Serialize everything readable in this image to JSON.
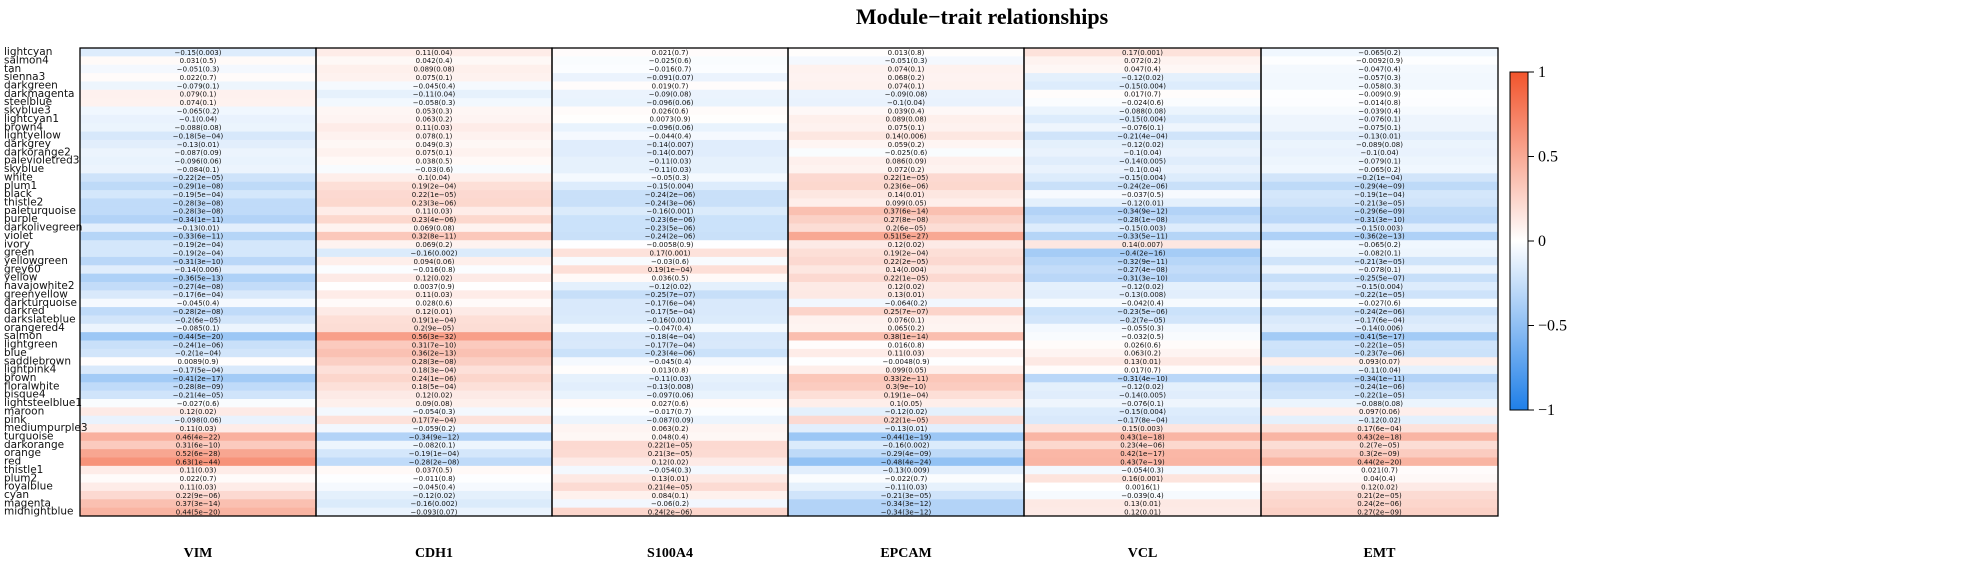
{
  "chart_data": {
    "type": "heatmap",
    "title": "Module−trait relationships",
    "columns": [
      "VIM",
      "CDH1",
      "S100A4",
      "EPCAM",
      "VCL",
      "EMT"
    ],
    "rows": [
      "lightcyan",
      "salmon4",
      "tan",
      "sienna3",
      "darkgreen",
      "darkmagenta",
      "steelblue",
      "skyblue3",
      "lightcyan1",
      "brown4",
      "lightyellow",
      "darkgrey",
      "darkorange2",
      "palevioletred3",
      "skyblue",
      "white",
      "plum1",
      "black",
      "thistle2",
      "paleturquoise",
      "purple",
      "darkolivegreen",
      "violet",
      "ivory",
      "green",
      "yellowgreen",
      "grey60",
      "yellow",
      "navajowhite2",
      "greenyellow",
      "darkturquoise",
      "darkred",
      "darkslateblue",
      "orangered4",
      "salmon",
      "lightgreen",
      "blue",
      "saddlebrown",
      "lightpink4",
      "brown",
      "floralwhite",
      "bisque4",
      "lightsteelblue1",
      "maroon",
      "pink",
      "mediumpurple3",
      "turquoise",
      "darkorange",
      "orange",
      "red",
      "thistle1",
      "plum2",
      "royalblue",
      "cyan",
      "magenta",
      "midnightblue"
    ],
    "values": [
      [
        -0.15,
        0.11,
        0.021,
        0.013,
        0.17,
        -0.065
      ],
      [
        0.031,
        0.042,
        -0.025,
        -0.051,
        0.072,
        -0.0092
      ],
      [
        -0.051,
        0.089,
        -0.016,
        0.074,
        0.047,
        -0.047
      ],
      [
        0.022,
        0.075,
        -0.091,
        0.068,
        -0.12,
        -0.057
      ],
      [
        -0.079,
        -0.045,
        0.019,
        0.074,
        -0.15,
        -0.058
      ],
      [
        0.079,
        -0.11,
        -0.09,
        -0.09,
        0.017,
        -0.009
      ],
      [
        0.074,
        -0.058,
        -0.096,
        -0.1,
        -0.024,
        -0.014
      ],
      [
        -0.065,
        0.053,
        0.026,
        0.039,
        -0.088,
        -0.039
      ],
      [
        -0.1,
        0.063,
        0.0073,
        0.089,
        -0.15,
        -0.076
      ],
      [
        -0.088,
        0.11,
        -0.096,
        0.075,
        -0.076,
        -0.075
      ],
      [
        -0.18,
        0.078,
        -0.044,
        0.14,
        -0.21,
        -0.13
      ],
      [
        -0.13,
        0.049,
        -0.14,
        0.059,
        -0.12,
        -0.089
      ],
      [
        -0.087,
        0.075,
        -0.14,
        -0.025,
        -0.1,
        -0.1
      ],
      [
        -0.096,
        0.038,
        -0.11,
        0.086,
        -0.14,
        -0.079
      ],
      [
        -0.084,
        -0.03,
        -0.11,
        0.072,
        -0.1,
        -0.065
      ],
      [
        -0.22,
        0.1,
        -0.05,
        0.22,
        -0.15,
        -0.2
      ],
      [
        -0.29,
        0.19,
        -0.15,
        0.23,
        -0.24,
        -0.29
      ],
      [
        -0.19,
        0.22,
        -0.24,
        0.14,
        -0.037,
        -0.19
      ],
      [
        -0.28,
        0.23,
        -0.24,
        0.099,
        -0.12,
        -0.21
      ],
      [
        -0.28,
        0.11,
        -0.16,
        0.37,
        -0.34,
        -0.29
      ],
      [
        -0.34,
        0.23,
        -0.23,
        0.27,
        -0.28,
        -0.31
      ],
      [
        -0.13,
        0.069,
        -0.23,
        0.2,
        -0.15,
        -0.15
      ],
      [
        -0.33,
        0.32,
        -0.24,
        0.51,
        -0.33,
        -0.36
      ],
      [
        -0.19,
        0.069,
        -0.0058,
        0.12,
        0.14,
        -0.065
      ],
      [
        -0.19,
        -0.16,
        0.17,
        0.19,
        -0.4,
        -0.082
      ],
      [
        -0.31,
        0.094,
        -0.03,
        0.22,
        -0.32,
        -0.21
      ],
      [
        -0.14,
        -0.016,
        0.19,
        0.14,
        -0.27,
        -0.078
      ],
      [
        -0.36,
        0.12,
        0.036,
        0.22,
        -0.31,
        -0.25
      ],
      [
        -0.27,
        0.0037,
        -0.12,
        0.12,
        -0.12,
        -0.15
      ],
      [
        -0.17,
        0.11,
        -0.25,
        0.13,
        -0.13,
        -0.22
      ],
      [
        -0.045,
        0.028,
        -0.17,
        -0.064,
        -0.042,
        -0.027
      ],
      [
        -0.28,
        0.12,
        -0.17,
        0.25,
        -0.23,
        -0.24
      ],
      [
        -0.2,
        0.19,
        -0.16,
        0.076,
        -0.2,
        -0.17
      ],
      [
        -0.085,
        0.2,
        -0.047,
        0.065,
        -0.055,
        -0.14
      ],
      [
        -0.44,
        0.56,
        -0.18,
        0.38,
        -0.032,
        -0.41
      ],
      [
        -0.24,
        0.31,
        -0.17,
        0.016,
        0.026,
        -0.22
      ],
      [
        -0.2,
        0.36,
        -0.23,
        0.11,
        0.063,
        -0.23
      ],
      [
        0.0089,
        0.28,
        -0.045,
        -0.0048,
        0.13,
        0.093
      ],
      [
        -0.17,
        0.18,
        0.013,
        0.099,
        0.017,
        -0.11
      ],
      [
        -0.41,
        0.24,
        -0.11,
        0.33,
        -0.31,
        -0.34
      ],
      [
        -0.28,
        0.18,
        -0.13,
        0.3,
        -0.12,
        -0.24
      ],
      [
        -0.21,
        0.12,
        -0.097,
        0.19,
        -0.14,
        -0.22
      ],
      [
        -0.027,
        0.09,
        0.027,
        0.1,
        -0.076,
        -0.088
      ],
      [
        0.12,
        -0.054,
        -0.017,
        -0.12,
        -0.15,
        0.097
      ],
      [
        -0.098,
        0.17,
        -0.087,
        0.22,
        -0.17,
        -0.12
      ],
      [
        0.11,
        -0.059,
        0.063,
        -0.13,
        0.15,
        0.17
      ],
      [
        0.46,
        -0.34,
        0.048,
        -0.44,
        0.43,
        0.43
      ],
      [
        0.31,
        -0.082,
        0.22,
        -0.16,
        0.23,
        0.2
      ],
      [
        0.52,
        -0.19,
        0.21,
        -0.29,
        0.42,
        0.3
      ],
      [
        0.63,
        -0.28,
        0.12,
        -0.48,
        0.43,
        0.44
      ],
      [
        0.11,
        0.037,
        -0.054,
        -0.13,
        -0.054,
        0.021
      ],
      [
        0.022,
        -0.011,
        0.13,
        -0.022,
        0.16,
        0.04
      ],
      [
        0.11,
        -0.045,
        0.21,
        -0.11,
        0.0016,
        0.12
      ],
      [
        0.22,
        -0.12,
        0.084,
        -0.21,
        -0.039,
        0.21
      ],
      [
        0.37,
        -0.16,
        -0.06,
        -0.34,
        0.13,
        0.24
      ],
      [
        0.44,
        -0.093,
        0.24,
        -0.34,
        0.12,
        0.27
      ]
    ],
    "labels": [
      [
        "−0.15(0.003)",
        "0.11(0.04)",
        "0.021(0.7)",
        "0.013(0.8)",
        "0.17(0.001)",
        "−0.065(0.2)"
      ],
      [
        "0.031(0.5)",
        "0.042(0.4)",
        "−0.025(0.6)",
        "−0.051(0.3)",
        "0.072(0.2)",
        "−0.0092(0.9)"
      ],
      [
        "−0.051(0.3)",
        "0.089(0.08)",
        "−0.016(0.7)",
        "0.074(0.1)",
        "0.047(0.4)",
        "−0.047(0.4)"
      ],
      [
        "0.022(0.7)",
        "0.075(0.1)",
        "−0.091(0.07)",
        "0.068(0.2)",
        "−0.12(0.02)",
        "−0.057(0.3)"
      ],
      [
        "−0.079(0.1)",
        "−0.045(0.4)",
        "0.019(0.7)",
        "0.074(0.1)",
        "−0.15(0.004)",
        "−0.058(0.3)"
      ],
      [
        "0.079(0.1)",
        "−0.11(0.04)",
        "−0.09(0.08)",
        "−0.09(0.08)",
        "0.017(0.7)",
        "−0.009(0.9)"
      ],
      [
        "0.074(0.1)",
        "−0.058(0.3)",
        "−0.096(0.06)",
        "−0.1(0.04)",
        "−0.024(0.6)",
        "−0.014(0.8)"
      ],
      [
        "−0.065(0.2)",
        "0.053(0.3)",
        "0.026(0.6)",
        "0.039(0.4)",
        "−0.088(0.08)",
        "−0.039(0.4)"
      ],
      [
        "−0.1(0.04)",
        "0.063(0.2)",
        "0.0073(0.9)",
        "0.089(0.08)",
        "−0.15(0.004)",
        "−0.076(0.1)"
      ],
      [
        "−0.088(0.08)",
        "0.11(0.03)",
        "−0.096(0.06)",
        "0.075(0.1)",
        "−0.076(0.1)",
        "−0.075(0.1)"
      ],
      [
        "−0.18(5e−04)",
        "0.078(0.1)",
        "−0.044(0.4)",
        "0.14(0.006)",
        "−0.21(4e−04)",
        "−0.13(0.01)"
      ],
      [
        "−0.13(0.01)",
        "0.049(0.3)",
        "−0.14(0.007)",
        "0.059(0.2)",
        "−0.12(0.02)",
        "−0.089(0.08)"
      ],
      [
        "−0.087(0.09)",
        "0.075(0.1)",
        "−0.14(0.007)",
        "−0.025(0.6)",
        "−0.1(0.04)",
        "−0.1(0.04)"
      ],
      [
        "−0.096(0.06)",
        "0.038(0.5)",
        "−0.11(0.03)",
        "0.086(0.09)",
        "−0.14(0.005)",
        "−0.079(0.1)"
      ],
      [
        "−0.084(0.1)",
        "−0.03(0.6)",
        "−0.11(0.03)",
        "0.072(0.2)",
        "−0.1(0.04)",
        "−0.065(0.2)"
      ],
      [
        "−0.22(2e−05)",
        "0.1(0.04)",
        "−0.05(0.3)",
        "0.22(1e−05)",
        "−0.15(0.004)",
        "−0.2(1e−04)"
      ],
      [
        "−0.29(1e−08)",
        "0.19(2e−04)",
        "−0.15(0.004)",
        "0.23(6e−06)",
        "−0.24(2e−06)",
        "−0.29(4e−09)"
      ],
      [
        "−0.19(5e−04)",
        "0.22(1e−05)",
        "−0.24(2e−06)",
        "0.14(0.01)",
        "−0.037(0.5)",
        "−0.19(1e−04)"
      ],
      [
        "−0.28(3e−08)",
        "0.23(3e−06)",
        "−0.24(3e−06)",
        "0.099(0.05)",
        "−0.12(0.01)",
        "−0.21(3e−05)"
      ],
      [
        "−0.28(3e−08)",
        "0.11(0.03)",
        "−0.16(0.001)",
        "0.37(6e−14)",
        "−0.34(9e−12)",
        "−0.29(6e−09)"
      ],
      [
        "−0.34(1e−11)",
        "0.23(4e−06)",
        "−0.23(6e−06)",
        "0.27(8e−08)",
        "−0.28(1e−08)",
        "−0.31(3e−10)"
      ],
      [
        "−0.13(0.01)",
        "0.069(0.08)",
        "−0.23(5e−06)",
        "0.2(6e−05)",
        "−0.15(0.003)",
        "−0.15(0.003)"
      ],
      [
        "−0.33(6e−11)",
        "0.32(8e−11)",
        "−0.24(2e−06)",
        "0.51(5e−27)",
        "−0.33(5e−11)",
        "−0.36(2e−13)"
      ],
      [
        "−0.19(2e−04)",
        "0.069(0.2)",
        "−0.0058(0.9)",
        "0.12(0.02)",
        "0.14(0.007)",
        "−0.065(0.2)"
      ],
      [
        "−0.19(2e−04)",
        "−0.16(0.002)",
        "0.17(0.001)",
        "0.19(2e−04)",
        "−0.4(2e−16)",
        "−0.082(0.1)"
      ],
      [
        "−0.31(3e−10)",
        "0.094(0.06)",
        "−0.03(0.6)",
        "0.22(2e−05)",
        "−0.32(9e−11)",
        "−0.21(3e−05)"
      ],
      [
        "−0.14(0.006)",
        "−0.016(0.8)",
        "0.19(1e−04)",
        "0.14(0.004)",
        "−0.27(4e−08)",
        "−0.078(0.1)"
      ],
      [
        "−0.36(5e−13)",
        "0.12(0.02)",
        "0.036(0.5)",
        "0.22(1e−05)",
        "−0.31(3e−10)",
        "−0.25(5e−07)"
      ],
      [
        "−0.27(4e−08)",
        "0.0037(0.9)",
        "−0.12(0.02)",
        "0.12(0.02)",
        "−0.12(0.02)",
        "−0.15(0.004)"
      ],
      [
        "−0.17(6e−04)",
        "0.11(0.03)",
        "−0.25(7e−07)",
        "0.13(0.01)",
        "−0.13(0.008)",
        "−0.22(1e−05)"
      ],
      [
        "−0.045(0.4)",
        "0.028(0.6)",
        "−0.17(6e−04)",
        "−0.064(0.2)",
        "−0.042(0.4)",
        "−0.027(0.6)"
      ],
      [
        "−0.28(2e−08)",
        "0.12(0.01)",
        "−0.17(5e−04)",
        "0.25(7e−07)",
        "−0.23(5e−06)",
        "−0.24(2e−06)"
      ],
      [
        "−0.2(6e−05)",
        "0.19(1e−04)",
        "−0.16(0.001)",
        "0.076(0.1)",
        "−0.2(7e−05)",
        "−0.17(6e−04)"
      ],
      [
        "−0.085(0.1)",
        "0.2(9e−05)",
        "−0.047(0.4)",
        "0.065(0.2)",
        "−0.055(0.3)",
        "−0.14(0.006)"
      ],
      [
        "−0.44(5e−20)",
        "0.56(3e−32)",
        "−0.18(4e−04)",
        "0.38(1e−14)",
        "−0.032(0.5)",
        "−0.41(5e−17)"
      ],
      [
        "−0.24(1e−06)",
        "0.31(7e−10)",
        "−0.17(7e−04)",
        "0.016(0.8)",
        "0.026(0.6)",
        "−0.22(1e−05)"
      ],
      [
        "−0.2(1e−04)",
        "0.36(2e−13)",
        "−0.23(4e−06)",
        "0.11(0.03)",
        "0.063(0.2)",
        "−0.23(7e−06)"
      ],
      [
        "0.0089(0.9)",
        "0.28(3e−08)",
        "−0.045(0.4)",
        "−0.0048(0.9)",
        "0.13(0.01)",
        "0.093(0.07)"
      ],
      [
        "−0.17(5e−04)",
        "0.18(3e−04)",
        "0.013(0.8)",
        "0.099(0.05)",
        "0.017(0.7)",
        "−0.11(0.04)"
      ],
      [
        "−0.41(2e−17)",
        "0.24(1e−06)",
        "−0.11(0.03)",
        "0.33(2e−11)",
        "−0.31(4e−10)",
        "−0.34(1e−11)"
      ],
      [
        "−0.28(8e−09)",
        "0.18(5e−04)",
        "−0.13(0.008)",
        "0.3(9e−10)",
        "−0.12(0.02)",
        "−0.24(1e−06)"
      ],
      [
        "−0.21(4e−05)",
        "0.12(0.02)",
        "−0.097(0.06)",
        "0.19(1e−04)",
        "−0.14(0.005)",
        "−0.22(1e−05)"
      ],
      [
        "−0.027(0.6)",
        "0.09(0.08)",
        "0.027(0.6)",
        "0.1(0.05)",
        "−0.076(0.1)",
        "−0.088(0.08)"
      ],
      [
        "0.12(0.02)",
        "−0.054(0.3)",
        "−0.017(0.7)",
        "−0.12(0.02)",
        "−0.15(0.004)",
        "0.097(0.06)"
      ],
      [
        "−0.098(0.06)",
        "0.17(7e−04)",
        "−0.087(0.09)",
        "0.22(1e−05)",
        "−0.17(8e−04)",
        "−0.12(0.02)"
      ],
      [
        "0.11(0.03)",
        "−0.059(0.2)",
        "0.063(0.2)",
        "−0.13(0.01)",
        "0.15(0.003)",
        "0.17(6e−04)"
      ],
      [
        "0.46(4e−22)",
        "−0.34(9e−12)",
        "0.048(0.4)",
        "−0.44(1e−19)",
        "0.43(1e−18)",
        "0.43(2e−18)"
      ],
      [
        "0.31(6e−10)",
        "−0.082(0.1)",
        "0.22(1e−05)",
        "−0.16(0.002)",
        "0.23(4e−06)",
        "0.2(7e−05)"
      ],
      [
        "0.52(6e−28)",
        "−0.19(1e−04)",
        "0.21(3e−05)",
        "−0.29(4e−09)",
        "0.42(1e−17)",
        "0.3(2e−09)"
      ],
      [
        "0.63(1e−44)",
        "−0.28(2e−08)",
        "0.12(0.02)",
        "−0.48(4e−24)",
        "0.43(7e−19)",
        "0.44(2e−20)"
      ],
      [
        "0.11(0.03)",
        "0.037(0.5)",
        "−0.054(0.3)",
        "−0.13(0.009)",
        "−0.054(0.3)",
        "0.021(0.7)"
      ],
      [
        "0.022(0.7)",
        "−0.011(0.8)",
        "0.13(0.01)",
        "−0.022(0.7)",
        "0.16(0.001)",
        "0.04(0.4)"
      ],
      [
        "0.11(0.03)",
        "−0.045(0.4)",
        "0.21(4e−05)",
        "−0.11(0.03)",
        "0.0016(1)",
        "0.12(0.02)"
      ],
      [
        "0.22(9e−06)",
        "−0.12(0.02)",
        "0.084(0.1)",
        "−0.21(3e−05)",
        "−0.039(0.4)",
        "0.21(2e−05)"
      ],
      [
        "0.37(3e−14)",
        "−0.16(0.002)",
        "−0.06(0.2)",
        "−0.34(3e−12)",
        "0.13(0.01)",
        "0.24(2e−06)"
      ],
      [
        "0.44(5e−20)",
        "−0.093(0.07)",
        "0.24(2e−06)",
        "−0.34(3e−12)",
        "0.12(0.01)",
        "0.27(2e−09)"
      ]
    ],
    "color_scale": {
      "min": -1,
      "max": 1,
      "low": "#1f7fe8",
      "mid": "#ffffff",
      "high": "#f2542c"
    },
    "colorbar_ticks": [
      1,
      0.5,
      0,
      -0.5,
      -1
    ],
    "colorbar_tick_labels": [
      "1",
      "0.5",
      "0",
      "−0.5",
      "−1"
    ]
  }
}
